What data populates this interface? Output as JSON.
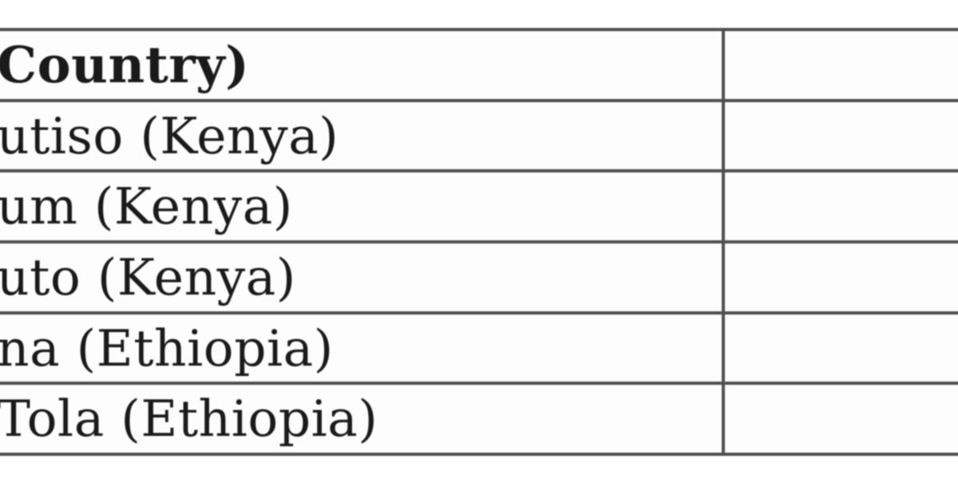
{
  "page": {
    "background_color": "#ffffff"
  },
  "table": {
    "border_color": "#4f4f4f",
    "text_color": "#1a1a1a",
    "header": {
      "name_fragment": "Country)",
      "value": ""
    },
    "rows": [
      {
        "name_fragment": "utiso (Kenya)",
        "value": ""
      },
      {
        "name_fragment": "um (Kenya)",
        "value": ""
      },
      {
        "name_fragment": "uto (Kenya)",
        "value": ""
      },
      {
        "name_fragment": "na (Ethiopia)",
        "value": ""
      },
      {
        "name_fragment": "Tola (Ethiopia)",
        "value": ""
      }
    ]
  }
}
